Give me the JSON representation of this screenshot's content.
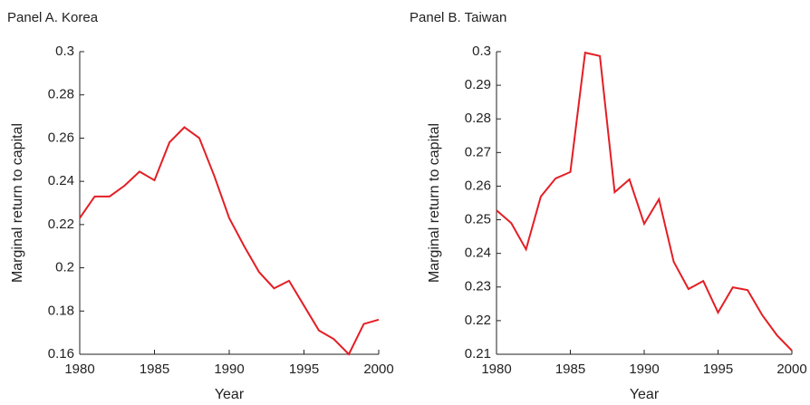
{
  "chart_data": [
    {
      "type": "line",
      "title": "Panel A. Korea",
      "x_label": "Year",
      "y_label": "Marginal return to capital",
      "x": [
        1980,
        1981,
        1982,
        1983,
        1984,
        1985,
        1986,
        1987,
        1988,
        1989,
        1990,
        1991,
        1992,
        1993,
        1994,
        1995,
        1996,
        1997,
        1998,
        1999,
        2000
      ],
      "series": [
        {
          "color": "#e31e24",
          "values": [
            0.223,
            0.233,
            0.233,
            0.238,
            0.2445,
            0.2405,
            0.258,
            0.265,
            0.26,
            0.2425,
            0.223,
            0.21,
            0.198,
            0.1905,
            0.194,
            0.1825,
            0.171,
            0.167,
            0.16,
            0.174,
            0.176
          ]
        }
      ],
      "xlim": [
        1980,
        2000
      ],
      "xticks": [
        1980,
        1985,
        1990,
        1995,
        2000
      ],
      "ylim": [
        0.16,
        0.3
      ],
      "yticks": [
        0.16,
        0.18,
        0.2,
        0.22,
        0.24,
        0.26,
        0.28,
        0.3
      ]
    },
    {
      "type": "line",
      "title": "Panel B. Taiwan",
      "x_label": "Year",
      "y_label": "Marginal return to capital",
      "x": [
        1980,
        1981,
        1982,
        1983,
        1984,
        1985,
        1986,
        1987,
        1988,
        1989,
        1990,
        1991,
        1992,
        1993,
        1994,
        1995,
        1996,
        1997,
        1998,
        1999,
        2000
      ],
      "series": [
        {
          "color": "#e31e24",
          "values": [
            0.2528,
            0.249,
            0.2412,
            0.2569,
            0.2623,
            0.2642,
            0.2997,
            0.2987,
            0.2582,
            0.262,
            0.2488,
            0.2561,
            0.2375,
            0.2294,
            0.2318,
            0.2224,
            0.2299,
            0.2291,
            0.2216,
            0.2156,
            0.2111
          ]
        }
      ],
      "xlim": [
        1980,
        2000
      ],
      "xticks": [
        1980,
        1985,
        1990,
        1995,
        2000
      ],
      "ylim": [
        0.21,
        0.3
      ],
      "yticks": [
        0.21,
        0.22,
        0.23,
        0.24,
        0.25,
        0.26,
        0.27,
        0.28,
        0.29,
        0.3
      ]
    }
  ]
}
